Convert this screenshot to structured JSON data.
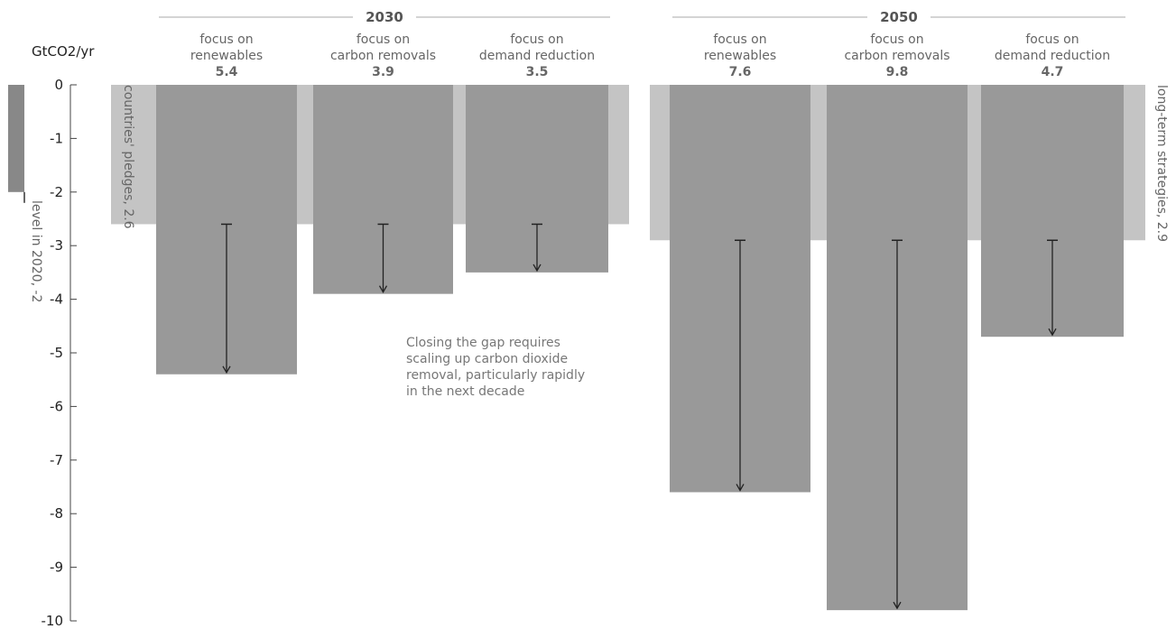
{
  "chart_data": {
    "type": "bar",
    "unit_label": "GtCO2/yr",
    "ylim": [
      -10,
      0
    ],
    "y_ticks": [
      0,
      -1,
      -2,
      -3,
      -4,
      -5,
      -6,
      -7,
      -8,
      -9,
      -10
    ],
    "y_tick_labels": [
      "0",
      "-1",
      "-2",
      "-3",
      "-4",
      "-5",
      "-6",
      "-7",
      "-8",
      "-9",
      "-10"
    ],
    "baseline": {
      "label": "level in 2020, -2",
      "value": -2
    },
    "groups": [
      {
        "period": "2030",
        "reference": {
          "label": "countries' pledges, 2.6",
          "value": -2.6
        },
        "bars": [
          {
            "line1": "focus on",
            "line2": "renewables",
            "value_label": "5.4",
            "value": -5.4
          },
          {
            "line1": "focus on",
            "line2": "carbon removals",
            "value_label": "3.9",
            "value": -3.9
          },
          {
            "line1": "focus on",
            "line2": "demand reduction",
            "value_label": "3.5",
            "value": -3.5
          }
        ]
      },
      {
        "period": "2050",
        "reference": {
          "label": "long-term strategies, 2.9",
          "value": -2.9
        },
        "bars": [
          {
            "line1": "focus on",
            "line2": "renewables",
            "value_label": "7.6",
            "value": -7.6
          },
          {
            "line1": "focus on",
            "line2": "carbon removals",
            "value_label": "9.8",
            "value": -9.8
          },
          {
            "line1": "focus on",
            "line2": "demand reduction",
            "value_label": "4.7",
            "value": -4.7
          }
        ]
      }
    ],
    "annotation": [
      "Closing the gap requires",
      "scaling up carbon dioxide",
      "removal, particularly rapidly",
      "in the next decade"
    ],
    "colors": {
      "bar": "#999999",
      "reference": "#c4c4c4",
      "baseline_bar": "#888888",
      "arrow": "#222222",
      "axis": "#444444"
    }
  }
}
